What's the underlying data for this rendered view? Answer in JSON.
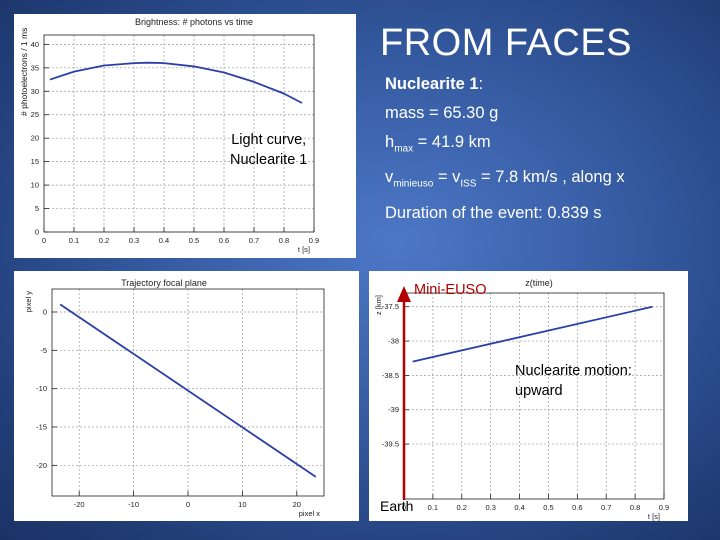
{
  "slide": {
    "title": "FROM FACES",
    "nuclearite_label": "Nuclearite 1",
    "nuclearite_colon": ":",
    "mass": "mass = 65.30 g",
    "hmax_prefix": "h",
    "hmax_sub": "max",
    "hmax_value": " = 41.9 km",
    "v_prefix": "v",
    "v_sub": "minieuso",
    "v_mid": " = v",
    "v_sub2": "ISS",
    "v_value": " = 7.8 km/s , along  x",
    "duration": "Duration of the event: 0.839 s",
    "light_curve_line1": "Light curve,",
    "light_curve_line2": "Nuclearite 1",
    "motion_line1": "Nuclearite motion:",
    "motion_line2": "upward",
    "mini_euso": "Mini-EUSO",
    "earth": "Earth",
    "colors": {
      "text": "#ffffff",
      "red": "#b00000",
      "line": "#2a3fa8"
    }
  },
  "chart_data": [
    {
      "type": "line",
      "title": "Brightness: # photons vs time",
      "ylabel": "# photoelectrons / 1 ms",
      "xlabel": "t [s]",
      "xlim": [
        0,
        0.9
      ],
      "ylim": [
        0,
        42
      ],
      "xticks": [
        "0",
        "0.1",
        "0.2",
        "0.3",
        "0.4",
        "0.5",
        "0.6",
        "0.7",
        "0.8",
        "0.9"
      ],
      "yticks": [
        "0",
        "5",
        "10",
        "15",
        "20",
        "25",
        "30",
        "35",
        "40"
      ],
      "grid": true,
      "series": [
        {
          "x": [
            0.02,
            0.1,
            0.2,
            0.3,
            0.35,
            0.4,
            0.5,
            0.6,
            0.7,
            0.8,
            0.86
          ],
          "y": [
            32.5,
            34.2,
            35.5,
            36.0,
            36.1,
            36.0,
            35.3,
            34.0,
            32.0,
            29.5,
            27.5
          ]
        }
      ]
    },
    {
      "type": "line",
      "title": "Trajectory focal plane",
      "ylabel": "pixel y",
      "xlabel": "pixel x",
      "xlim": [
        -25,
        25
      ],
      "ylim": [
        -24,
        3
      ],
      "xticks": [
        "-20",
        "-10",
        "0",
        "10",
        "20"
      ],
      "yticks": [
        "0",
        "-5",
        "-10",
        "-15",
        "-20"
      ],
      "grid": true,
      "series": [
        {
          "x": [
            -23.5,
            23.5
          ],
          "y": [
            1.0,
            -21.5
          ]
        }
      ]
    },
    {
      "type": "line",
      "title": "z(time)",
      "ylabel": "z [km]",
      "xlabel": "t [s]",
      "xlim": [
        0,
        0.9
      ],
      "ylim": [
        -40.3,
        -37.3
      ],
      "xticks": [
        "0",
        "0.1",
        "0.2",
        "0.3",
        "0.4",
        "0.5",
        "0.6",
        "0.7",
        "0.8",
        "0.9"
      ],
      "yticks": [
        "-37.5",
        "-38",
        "-38.5",
        "-39",
        "-39.5"
      ],
      "grid": true,
      "series": [
        {
          "x": [
            0.03,
            0.86
          ],
          "y": [
            -38.3,
            -37.5
          ]
        }
      ]
    }
  ]
}
